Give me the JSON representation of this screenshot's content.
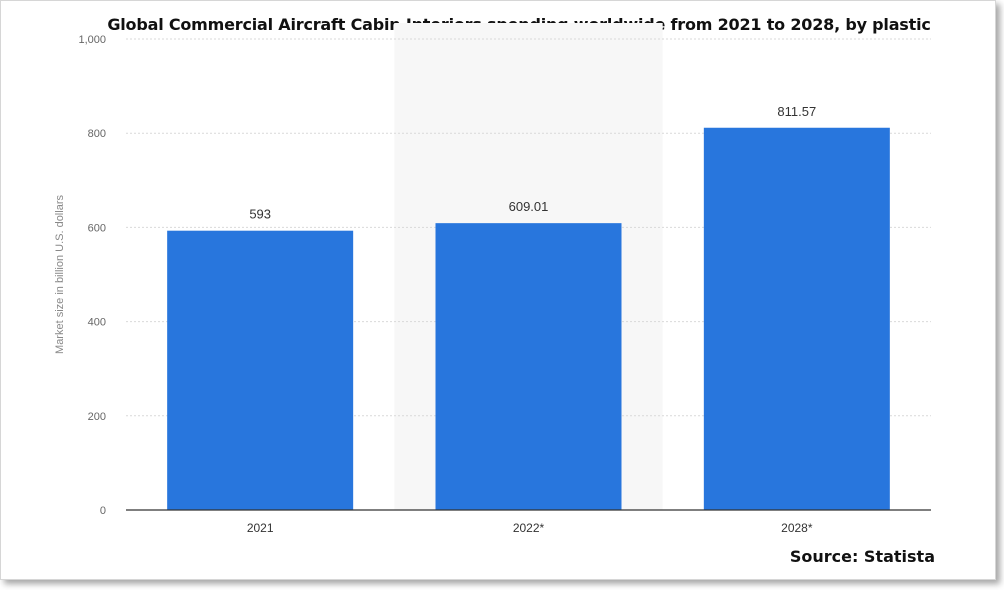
{
  "chart_data": {
    "type": "bar",
    "title": "Global Commercial Aircraft Cabin Interiors spending worldwide from 2021 to 2028, by plastic",
    "categories": [
      "2021",
      "2022*",
      "2028*"
    ],
    "values": [
      593,
      609.01,
      811.57
    ],
    "value_labels": [
      "593",
      "609.01",
      "811.57"
    ],
    "ylabel": "Market size in billion U.S. dollars",
    "xlabel": "",
    "ylim": [
      0,
      1000
    ],
    "yticks": [
      0,
      200,
      400,
      600,
      800,
      1000
    ],
    "ytick_labels": [
      "0",
      "200",
      "400",
      "600",
      "800",
      "1,000"
    ],
    "grid": true,
    "legend": "none",
    "bar_color": "#2876dd",
    "highlight_band_color": "#f7f7f7",
    "source": "Source: Statista"
  }
}
